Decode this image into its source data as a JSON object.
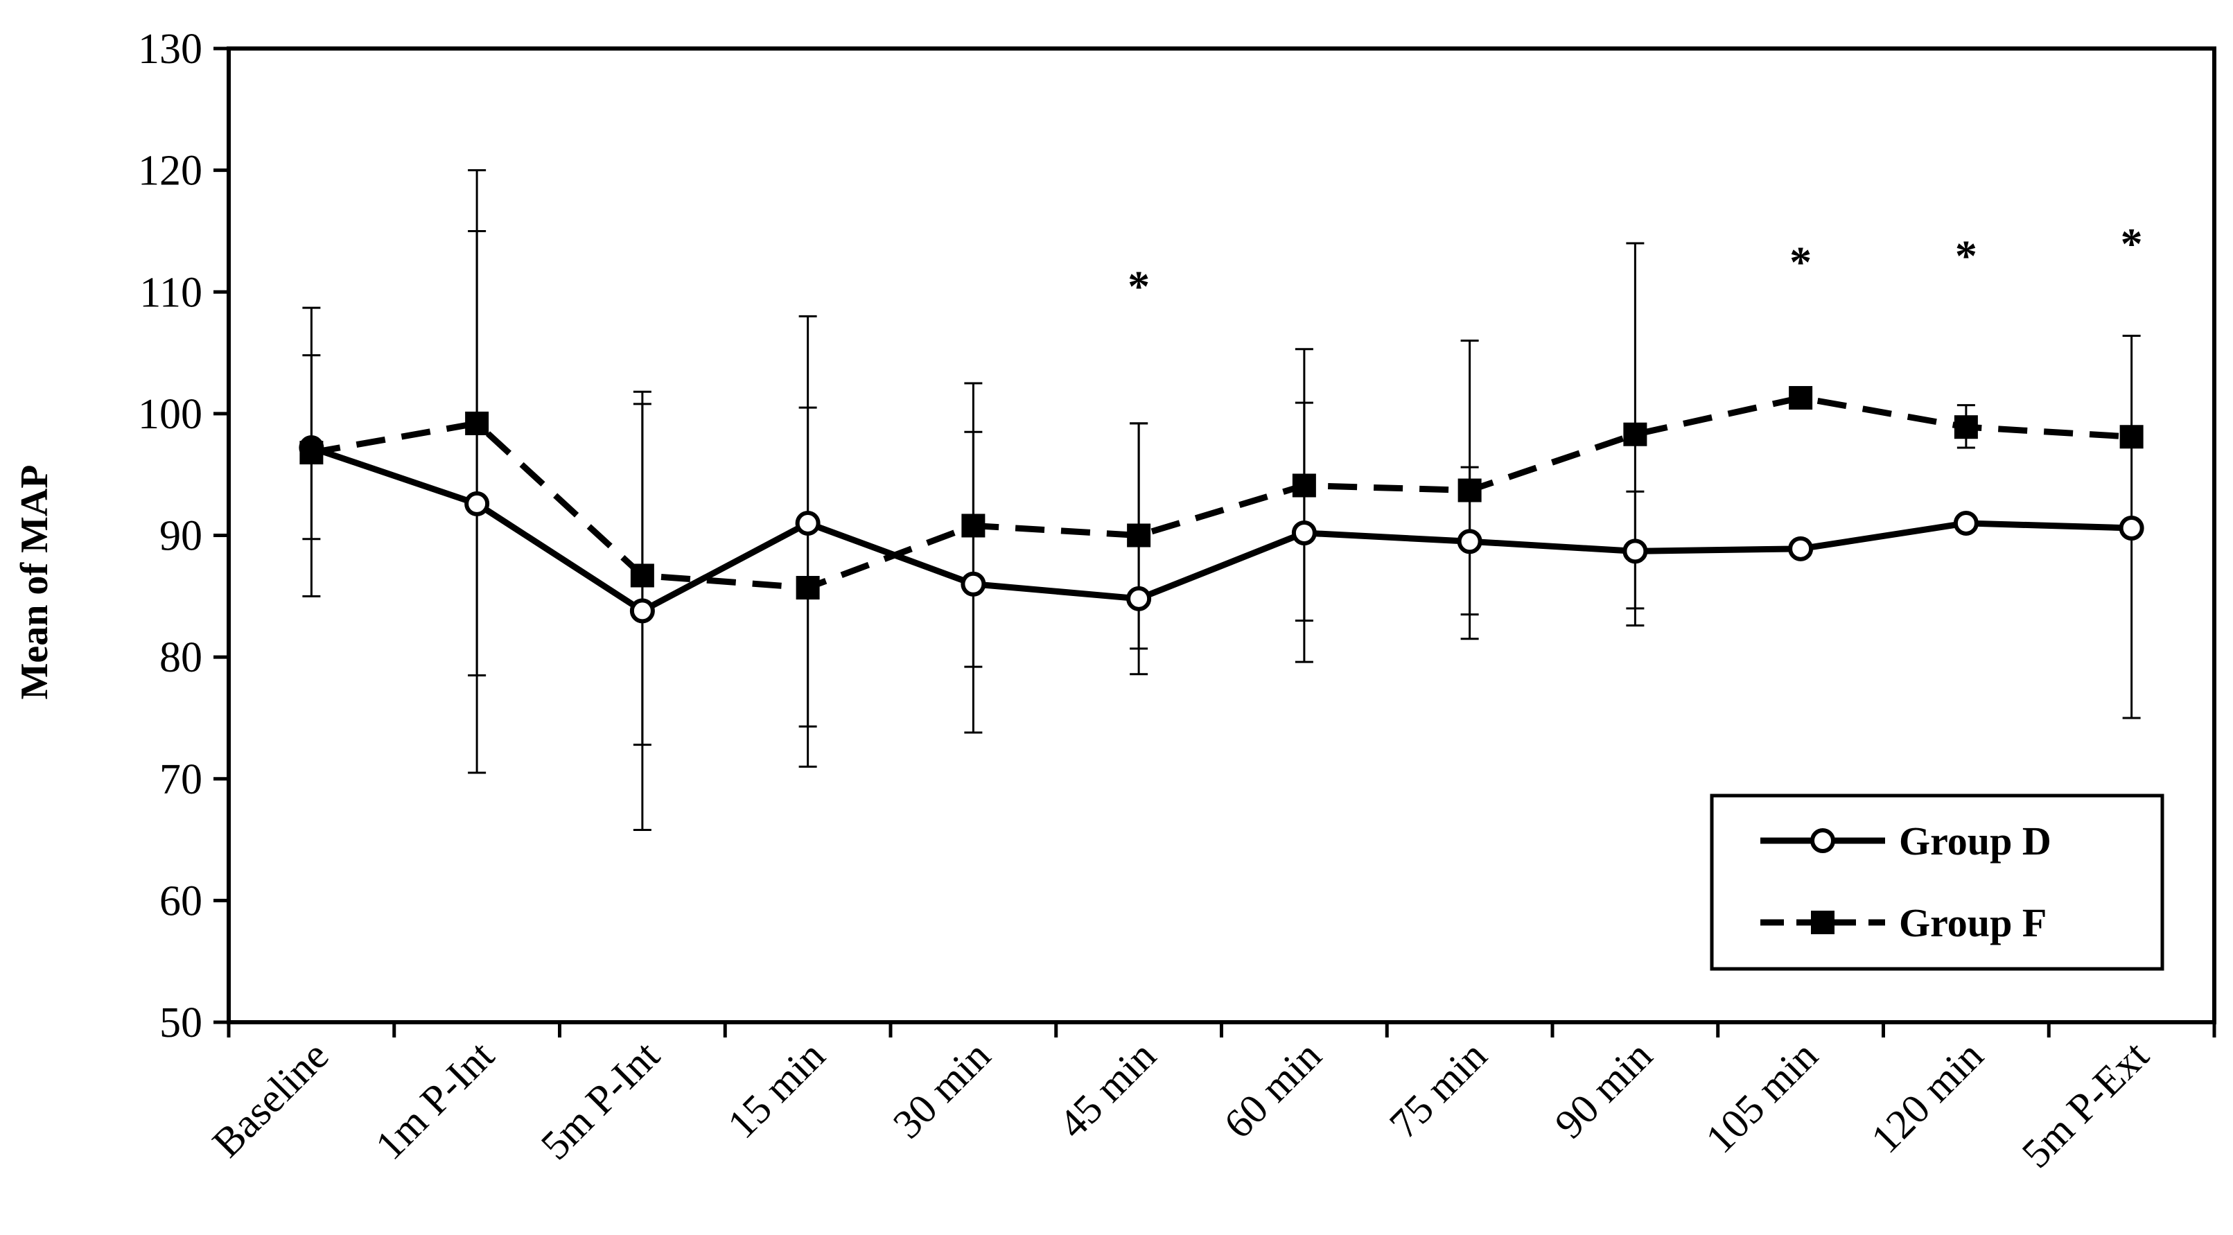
{
  "chart_data": {
    "type": "line",
    "title": "",
    "xlabel": "",
    "ylabel": "Mean of MAP",
    "ylim": [
      50,
      130
    ],
    "yticks": [
      50,
      60,
      70,
      80,
      90,
      100,
      110,
      120,
      130
    ],
    "grid": false,
    "legend_position": "bottom-right",
    "categories": [
      "Baseline",
      "1m P-Int",
      "5m P-Int",
      "15 min",
      "30 min",
      "45 min",
      "60 min",
      "75 min",
      "90 min",
      "105 min",
      "120 min",
      "5m P-Ext"
    ],
    "series": [
      {
        "name": "Group D",
        "line_style": "solid",
        "marker": "open-circle",
        "values": [
          97.2,
          92.6,
          83.8,
          91.0,
          86.0,
          84.8,
          90.2,
          89.5,
          88.7,
          88.9,
          91.0,
          90.6
        ],
        "error_low": [
          85.0,
          70.5,
          65.8,
          74.3,
          79.2,
          80.7,
          83.0,
          83.5,
          84.0,
          88.9,
          91.0,
          75.0
        ],
        "error_high": [
          104.8,
          115.0,
          100.8,
          108.0,
          98.5,
          99.2,
          100.9,
          95.6,
          93.6,
          88.9,
          91.0,
          106.4
        ]
      },
      {
        "name": "Group F",
        "line_style": "dashed",
        "marker": "filled-square",
        "values": [
          96.8,
          99.2,
          86.7,
          85.7,
          90.8,
          90.0,
          94.1,
          93.7,
          98.3,
          101.3,
          98.9,
          98.1
        ],
        "error_low": [
          89.7,
          78.5,
          72.8,
          71.0,
          73.8,
          78.6,
          79.6,
          81.5,
          82.6,
          101.3,
          97.2,
          98.1
        ],
        "error_high": [
          108.7,
          120.0,
          101.8,
          100.5,
          102.5,
          99.2,
          105.3,
          106.0,
          114.0,
          101.3,
          100.7,
          98.1
        ]
      }
    ],
    "annotations": [
      {
        "text": "*",
        "category_index": 5,
        "y": 110.5
      },
      {
        "text": "*",
        "category_index": 9,
        "y": 112.5
      },
      {
        "text": "*",
        "category_index": 10,
        "y": 113.0
      },
      {
        "text": "*",
        "category_index": 11,
        "y": 114.0
      }
    ]
  }
}
